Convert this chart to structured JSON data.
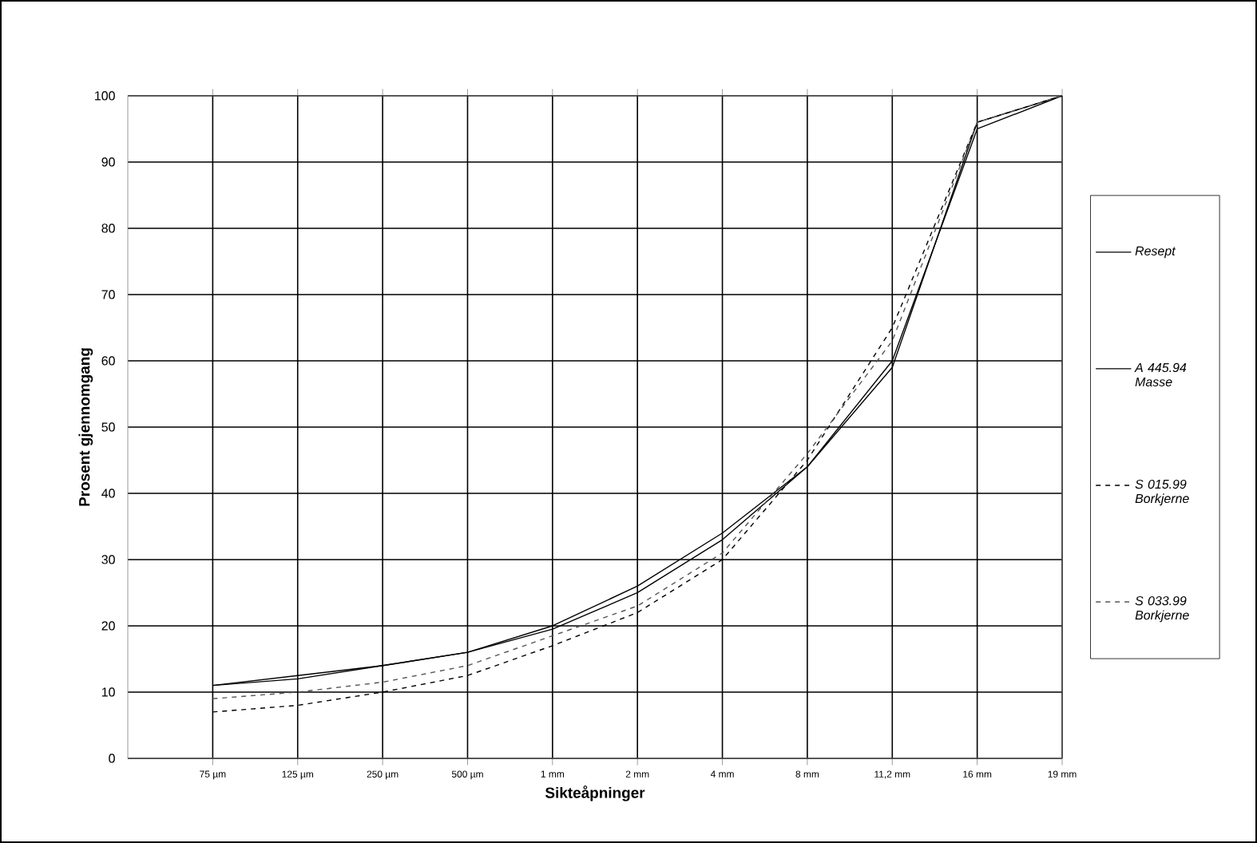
{
  "chart_data": {
    "type": "line",
    "xlabel": "Sikteåpninger",
    "ylabel": "Prosent gjennomgang",
    "categories": [
      "75 µm",
      "125 µm",
      "250 µm",
      "500 µm",
      "1 mm",
      "2 mm",
      "4 mm",
      "8 mm",
      "11,2 mm",
      "16 mm",
      "19 mm"
    ],
    "series": [
      {
        "name": "Resept",
        "color": "#000000",
        "line_style": "solid",
        "values": [
          11,
          12.5,
          14,
          16,
          20,
          26,
          34,
          44,
          60,
          95,
          100
        ]
      },
      {
        "name": "A 445.94 Masse",
        "color": "#000000",
        "line_style": "solid",
        "values": [
          11,
          12,
          14,
          16,
          19.5,
          25,
          33,
          44,
          59,
          96,
          100
        ]
      },
      {
        "name": "S 015.99 Borkjerne",
        "color": "#000000",
        "line_style": "dashed",
        "values": [
          7,
          8,
          10,
          12.5,
          17,
          22,
          30,
          45,
          65,
          96,
          100
        ]
      },
      {
        "name": "S 033.99 Borkjerne",
        "color": "#555555",
        "line_style": "dashed",
        "values": [
          9,
          10,
          11.5,
          14,
          18.5,
          23,
          31,
          46,
          63,
          96,
          100
        ]
      }
    ],
    "ylim": [
      0,
      100
    ],
    "yticks": [
      0,
      10,
      20,
      30,
      40,
      50,
      60,
      70,
      80,
      90,
      100
    ],
    "grid": true,
    "legend": "right",
    "marker": "none"
  }
}
